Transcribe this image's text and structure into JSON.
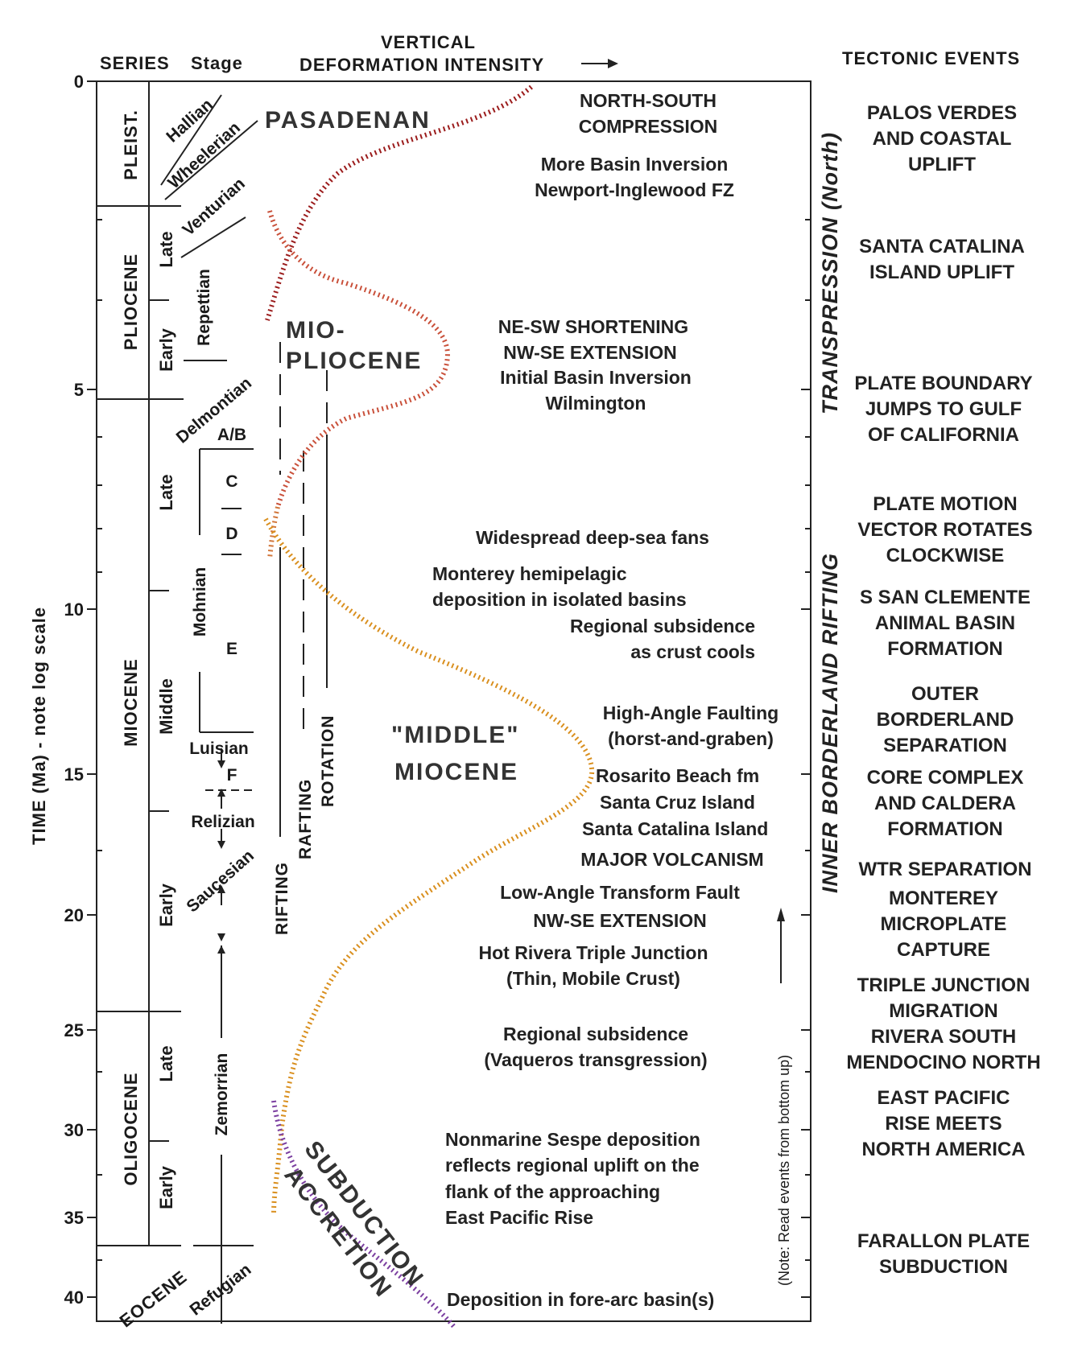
{
  "headers": {
    "series": "SERIES",
    "stage": "Stage",
    "vdi_line1": "VERTICAL",
    "vdi_line2": "DEFORMATION INTENSITY",
    "tectonic_events": "TECTONIC EVENTS"
  },
  "axis": {
    "label": "TIME (Ma) - note log scale",
    "ticks": [
      "0",
      "5",
      "10",
      "15",
      "20",
      "25",
      "30",
      "35",
      "40"
    ]
  },
  "series": {
    "pleist": "PLEIST.",
    "pliocene": "PLIOCENE",
    "miocene": "MIOCENE",
    "oligocene": "OLIGOCENE",
    "eocene": "EOCENE"
  },
  "subseries": {
    "pliocene_late": "Late",
    "pliocene_early": "Early",
    "miocene_late": "Late",
    "miocene_middle": "Middle",
    "miocene_early": "Early",
    "oligocene_late": "Late",
    "oligocene_early": "Early"
  },
  "stages": {
    "hallian": "Hallian",
    "wheelerian": "Wheelerian",
    "venturian": "Venturian",
    "repettian": "Repettian",
    "delmontian": "Delmontian",
    "ab": "A/B",
    "c": "C",
    "d": "D",
    "mohnian": "Mohnian",
    "e": "E",
    "luisian": "Luisian",
    "f": "F",
    "relizian": "Relizian",
    "saucesian": "Saucesian",
    "zemorrian": "Zemorrian",
    "refugian": "Refugian"
  },
  "orogenies": {
    "pasadenan": "PASADENAN",
    "mio": "MIO-",
    "pliocene": "PLIOCENE",
    "middle": "\"MIDDLE\"",
    "miocene": "MIOCENE",
    "subduction": "SUBDUCTION",
    "accretion": "ACCRETION"
  },
  "mechanisms": {
    "rifting": "RIFTING",
    "rafting": "RAFTING",
    "rotation": "ROTATION"
  },
  "events": [
    "NORTH-SOUTH",
    "COMPRESSION",
    "More Basin Inversion",
    "Newport-Inglewood FZ",
    "NE-SW SHORTENING",
    "NW-SE EXTENSION",
    "Initial Basin Inversion",
    "Wilmington",
    "Widespread deep-sea fans",
    "Monterey hemipelagic",
    "deposition in isolated basins",
    "Regional subsidence",
    "as crust cools",
    "High-Angle Faulting",
    "(horst-and-graben)",
    "Rosarito Beach fm",
    "Santa Cruz Island",
    "Santa Catalina Island",
    "MAJOR VOLCANISM",
    "Low-Angle Transform Fault",
    "NW-SE EXTENSION",
    "Hot Rivera Triple Junction",
    "(Thin, Mobile Crust)",
    "Regional subsidence",
    "(Vaqueros transgression)",
    "Nonmarine Sespe deposition",
    "reflects regional uplift on the",
    "flank of the approaching",
    "East Pacific Rise",
    "Deposition in fore-arc basin(s)"
  ],
  "regimes": {
    "transpression": "TRANSPRESSION (North)",
    "inner_borderland": "INNER BORDERLAND RIFTING",
    "note": "(Note: Read events from bottom up)"
  },
  "tectonic_events": [
    "PALOS VERDES",
    "AND COASTAL",
    "UPLIFT",
    "SANTA CATALINA",
    "ISLAND UPLIFT",
    "PLATE BOUNDARY",
    "JUMPS TO GULF",
    "OF CALIFORNIA",
    "PLATE MOTION",
    "VECTOR ROTATES",
    "CLOCKWISE",
    "S SAN CLEMENTE",
    "ANIMAL BASIN",
    "FORMATION",
    "OUTER",
    "BORDERLAND",
    "SEPARATION",
    "CORE COMPLEX",
    "AND CALDERA",
    "FORMATION",
    "WTR SEPARATION",
    "MONTEREY",
    "MICROPLATE",
    "CAPTURE",
    "TRIPLE JUNCTION",
    "MIGRATION",
    "RIVERA SOUTH",
    "MENDOCINO NORTH",
    "EAST PACIFIC",
    "RISE MEETS",
    "NORTH AMERICA",
    "FARALLON PLATE",
    "SUBDUCTION"
  ],
  "curve_colors": {
    "pasadenan": "#9b1c1c",
    "mio_pliocene": "#c9503a",
    "mio_pliocene_lower": "#d2773c",
    "middle_miocene": "#d98f1e",
    "subduction": "#7b3fa0"
  }
}
